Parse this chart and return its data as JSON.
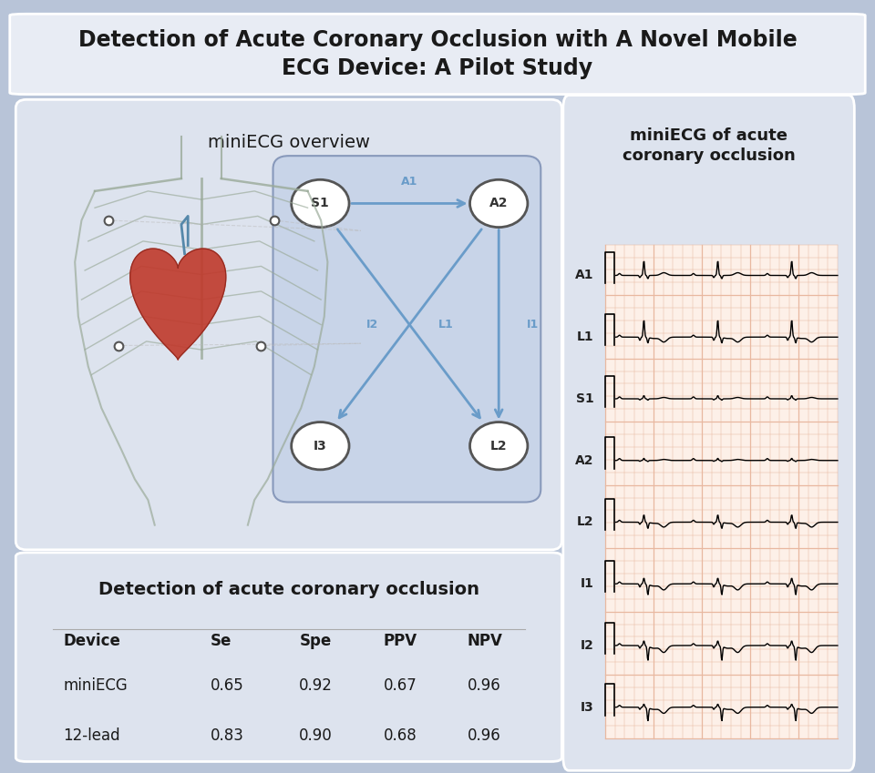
{
  "title": "Detection of Acute Coronary Occlusion with A Novel Mobile\nECG Device: A Pilot Study",
  "bg_outer": "#b8c4d8",
  "bg_title_box": "#e8ecf4",
  "bg_left_panel": "#dde3ee",
  "bg_bottom_left": "#dde3ee",
  "bg_right_panel": "#dde3ee",
  "table_title": "Detection of acute coronary occlusion",
  "table_headers": [
    "Device",
    "Se",
    "Spe",
    "PPV",
    "NPV"
  ],
  "table_rows": [
    [
      "miniECG",
      "0.65",
      "0.92",
      "0.67",
      "0.96"
    ],
    [
      "12-lead",
      "0.83",
      "0.90",
      "0.68",
      "0.96"
    ]
  ],
  "ecg_title": "miniECG of acute\ncoronary occlusion",
  "ecg_leads": [
    "A1",
    "L1",
    "S1",
    "A2",
    "L2",
    "I1",
    "I2",
    "I3"
  ],
  "overview_title": "miniECG overview",
  "arrow_color": "#6a9cc9",
  "ecg_grid_color": "#e8b8a0",
  "ecg_bg": "#fdf0e8"
}
